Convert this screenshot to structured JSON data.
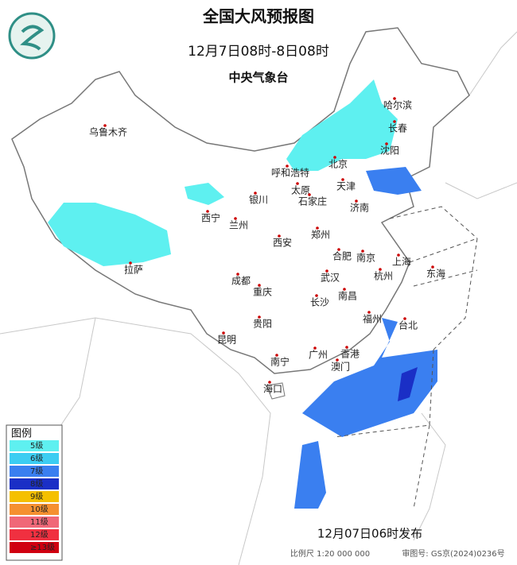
{
  "header": {
    "title": "全国大风预报图",
    "period": "12月7日08时-8日08时",
    "issuer": "中央气象台"
  },
  "cities": [
    "乌鲁木齐",
    "哈尔滨",
    "长春",
    "沈阳",
    "呼和浩特",
    "北京",
    "天津",
    "太原",
    "石家庄",
    "银川",
    "西宁",
    "兰州",
    "济南",
    "郑州",
    "西安",
    "合肥",
    "南京",
    "上海",
    "拉萨",
    "成都",
    "武汉",
    "杭州",
    "重庆",
    "南昌",
    "长沙",
    "福州",
    "台北",
    "贵阳",
    "昆明",
    "广州",
    "香港",
    "南宁",
    "澳门",
    "海口",
    "东海"
  ],
  "legend": {
    "title": "图例",
    "items": [
      {
        "label": "5级",
        "color": "#5ef0f0"
      },
      {
        "label": "6级",
        "color": "#3ccdf2"
      },
      {
        "label": "7级",
        "color": "#3a7ff0"
      },
      {
        "label": "8级",
        "color": "#1a2fc6"
      },
      {
        "label": "9级",
        "color": "#f5c000"
      },
      {
        "label": "10级",
        "color": "#f59030"
      },
      {
        "label": "11级",
        "color": "#f06878"
      },
      {
        "label": "12级",
        "color": "#f03040"
      },
      {
        "label": "≥13级",
        "color": "#d00010"
      }
    ]
  },
  "footer": {
    "issued": "12月07日06时发布",
    "scale": "比例尺 1:20 000 000",
    "review": "审图号: GS京(2024)0236号"
  }
}
